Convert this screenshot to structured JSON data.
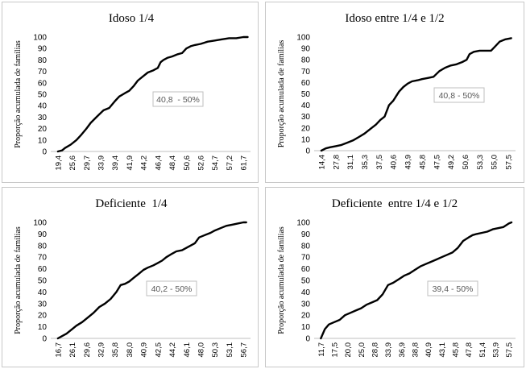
{
  "chart_data": [
    {
      "type": "line",
      "title": "Idoso 1/4",
      "ylabel": "Proporção acumulada de famílias",
      "xlabel": "",
      "ylim": [
        0,
        100
      ],
      "yticks": [
        0,
        10,
        20,
        30,
        40,
        50,
        60,
        70,
        80,
        90,
        100
      ],
      "x_ticks": [
        "19,4",
        "25,6",
        "29,7",
        "33,9",
        "39,4",
        "41,9",
        "44,2",
        "46,4",
        "48,4",
        "50,6",
        "52,6",
        "54,7",
        "57,2",
        "61,7"
      ],
      "annotation": "40,8  - 50%",
      "series": [
        {
          "x": [
            0,
            0.3,
            0.5,
            0.9,
            1.3,
            1.6,
            2.0,
            2.3,
            2.7,
            3.2,
            3.6,
            4.0,
            4.3,
            4.7,
            5.0,
            5.3,
            5.6,
            6.0,
            6.3,
            6.7,
            7.0,
            7.2,
            7.4,
            7.7,
            8.0,
            8.4,
            8.7,
            9.0,
            9.3,
            9.6,
            10.0,
            10.5,
            11.0,
            11.5,
            12.0,
            12.5,
            13.0,
            13.3
          ],
          "values": [
            0,
            1,
            3,
            6,
            10,
            14,
            20,
            25,
            30,
            36,
            38,
            44,
            48,
            51,
            53,
            57,
            62,
            66,
            69,
            71,
            73,
            78,
            80,
            82,
            83,
            85,
            86,
            90,
            92,
            93,
            94,
            96,
            97,
            98,
            99,
            99,
            100,
            100
          ]
        }
      ]
    },
    {
      "type": "line",
      "title": "Idoso entre 1/4 e 1/2",
      "ylabel": "Proporção acumulada de famílias",
      "xlabel": "",
      "ylim": [
        0,
        100
      ],
      "yticks": [
        0,
        10,
        20,
        30,
        40,
        50,
        60,
        70,
        80,
        90,
        100
      ],
      "x_ticks": [
        "14,4",
        "27,8",
        "31,1",
        "35,3",
        "37,5",
        "40,6",
        "43,9",
        "45,8",
        "47,5",
        "49,2",
        "50,6",
        "53,3",
        "55,0",
        "57,5"
      ],
      "annotation": "40,8 - 50%",
      "series": [
        {
          "x": [
            0,
            0.3,
            0.6,
            1.0,
            1.4,
            1.8,
            2.2,
            2.6,
            3.0,
            3.4,
            3.8,
            4.1,
            4.4,
            4.7,
            5.0,
            5.2,
            5.4,
            5.7,
            6.0,
            6.3,
            6.7,
            7.0,
            7.4,
            7.8,
            8.2,
            8.6,
            9.0,
            9.4,
            9.8,
            10.1,
            10.3,
            10.6,
            11.0,
            11.4,
            11.8,
            12.1,
            12.4,
            12.8,
            13.2
          ],
          "values": [
            0,
            2,
            3,
            4,
            5,
            7,
            9,
            12,
            15,
            19,
            23,
            27,
            30,
            40,
            44,
            48,
            52,
            56,
            59,
            61,
            62,
            63,
            64,
            65,
            70,
            73,
            75,
            76,
            78,
            80,
            85,
            87,
            88,
            88,
            88,
            92,
            96,
            98,
            99
          ]
        }
      ]
    },
    {
      "type": "line",
      "title": "Deficiente  1/4",
      "ylabel": "Proporção acumulada de famílias",
      "xlabel": "",
      "ylim": [
        0,
        100
      ],
      "yticks": [
        0,
        10,
        20,
        30,
        40,
        50,
        60,
        70,
        80,
        90,
        100
      ],
      "x_ticks": [
        "16,7",
        "26,1",
        "29,6",
        "32,9",
        "35,8",
        "38,0",
        "40,9",
        "42,5",
        "44,2",
        "46,1",
        "48,0",
        "50,3",
        "53,1",
        "56,7"
      ],
      "annotation": "40,2 - 50%",
      "series": [
        {
          "x": [
            0,
            0.3,
            0.6,
            0.9,
            1.3,
            1.7,
            2.1,
            2.5,
            2.9,
            3.3,
            3.7,
            4.1,
            4.4,
            4.7,
            5.0,
            5.3,
            5.7,
            6.0,
            6.3,
            6.7,
            7.0,
            7.3,
            7.6,
            8.0,
            8.3,
            8.7,
            9.0,
            9.3,
            9.6,
            9.9,
            10.3,
            10.7,
            11.0,
            11.4,
            11.8,
            12.2,
            12.6,
            13.0,
            13.2
          ],
          "values": [
            0,
            2,
            4,
            7,
            11,
            14,
            18,
            22,
            27,
            30,
            34,
            40,
            46,
            47,
            49,
            52,
            56,
            59,
            61,
            63,
            65,
            67,
            70,
            73,
            75,
            76,
            78,
            80,
            82,
            87,
            89,
            91,
            93,
            95,
            97,
            98,
            99,
            100,
            100
          ]
        }
      ]
    },
    {
      "type": "line",
      "title": "Deficiente  entre 1/4 e 1/2",
      "ylabel": "Proporção acumulada de famílias",
      "xlabel": "",
      "ylim": [
        0,
        100
      ],
      "yticks": [
        0,
        10,
        20,
        30,
        40,
        50,
        60,
        70,
        80,
        90,
        100
      ],
      "x_ticks": [
        "11,7",
        "17,5",
        "20,0",
        "25,0",
        "28,8",
        "33,9",
        "36,9",
        "38,8",
        "40,9",
        "43,1",
        "45,8",
        "47,8",
        "51,4",
        "53,9",
        "57,5"
      ],
      "annotation": "39,4 - 50%",
      "series": [
        {
          "x": [
            0,
            0.3,
            0.6,
            1.0,
            1.4,
            1.8,
            2.2,
            2.6,
            3.0,
            3.4,
            3.8,
            4.2,
            4.6,
            5.0,
            5.4,
            5.8,
            6.2,
            6.6,
            7.0,
            7.4,
            7.8,
            8.2,
            8.6,
            9.0,
            9.4,
            9.8,
            10.2,
            10.6,
            11.0,
            11.3,
            11.6,
            12.0,
            12.4,
            12.8,
            13.2,
            13.6,
            14.0,
            14.2
          ],
          "values": [
            0,
            8,
            12,
            14,
            16,
            20,
            22,
            24,
            26,
            29,
            31,
            33,
            38,
            46,
            48,
            51,
            54,
            56,
            59,
            62,
            64,
            66,
            68,
            70,
            72,
            74,
            78,
            84,
            87,
            89,
            90,
            91,
            92,
            94,
            95,
            96,
            99,
            100
          ]
        }
      ]
    }
  ]
}
